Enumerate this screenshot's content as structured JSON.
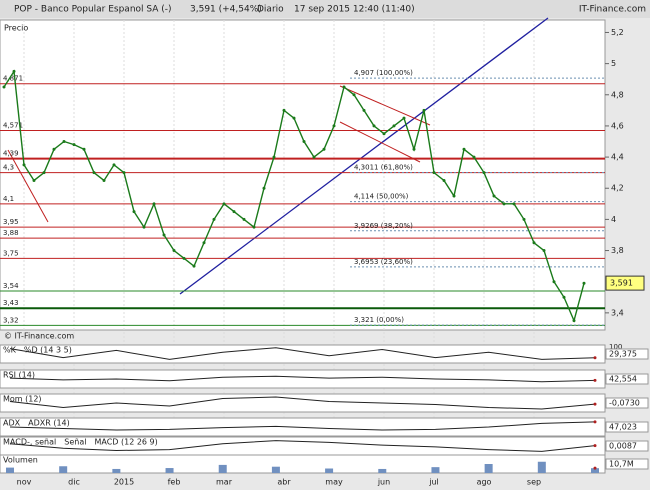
{
  "header": {
    "symbol": "POP - Banco Popular Espanol SA (-)",
    "price": "3,591 (+4,54%)",
    "period": "Diario",
    "datetime": "17 sep 2015 12:40 (11:40)",
    "brand": "IT-Finance.com"
  },
  "chart_data": {
    "type": "line",
    "price_label": "Precio",
    "copyright": "© IT-Finance.com",
    "color": "#1a7a1a",
    "categories": [
      null,
      null,
      "nov",
      null,
      null,
      null,
      null,
      "dic",
      null,
      null,
      null,
      null,
      "2015",
      null,
      null,
      null,
      null,
      "feb",
      null,
      null,
      null,
      null,
      "mar",
      null,
      null,
      null,
      null,
      null,
      "abr",
      null,
      null,
      null,
      null,
      "may",
      null,
      null,
      null,
      null,
      "jun",
      null,
      null,
      null,
      null,
      "jul",
      null,
      null,
      null,
      null,
      "ago",
      null,
      null,
      null,
      null,
      "sep",
      null,
      null,
      null,
      null,
      null
    ],
    "values": [
      4.85,
      4.95,
      4.35,
      4.25,
      4.3,
      4.45,
      4.5,
      4.48,
      4.45,
      4.3,
      4.25,
      4.35,
      4.3,
      4.05,
      3.95,
      4.1,
      3.9,
      3.8,
      3.75,
      3.7,
      3.85,
      4.0,
      4.1,
      4.05,
      4.0,
      3.95,
      4.2,
      4.4,
      4.7,
      4.65,
      4.5,
      4.4,
      4.45,
      4.6,
      4.85,
      4.8,
      4.7,
      4.6,
      4.55,
      4.6,
      4.65,
      4.45,
      4.7,
      4.3,
      4.25,
      4.15,
      4.45,
      4.4,
      4.3,
      4.15,
      4.1,
      4.1,
      4.0,
      3.85,
      3.8,
      3.6,
      3.5,
      3.35,
      3.59
    ],
    "ylim": [
      3.29,
      5.28
    ],
    "yticks": [
      {
        "value": 5.2,
        "label": "5,2"
      },
      5,
      {
        "value": 4.8,
        "label": "4,8"
      },
      {
        "value": 4.6,
        "label": "4,6"
      },
      {
        "value": 4.4,
        "label": "4,4"
      },
      {
        "value": 4.2,
        "label": "4,2"
      },
      4,
      {
        "value": 3.8,
        "label": "3,8"
      },
      {
        "value": 3.4,
        "label": "3,4"
      }
    ],
    "current": {
      "value": 3.591,
      "label": "3,591"
    },
    "levels": [
      {
        "value": 4.871,
        "label": "4,871",
        "color": "#c02020"
      },
      {
        "value": 4.571,
        "label": "4,571",
        "color": "#c02020"
      },
      {
        "value": 4.39,
        "label": "4,39",
        "color": "#c02020"
      },
      {
        "value": 4.3,
        "label": "4,3",
        "color": "#c02020"
      },
      {
        "value": 4.1,
        "label": "4,1",
        "color": "#c02020"
      },
      {
        "value": 3.95,
        "label": "3,95",
        "color": "#c02020"
      },
      {
        "value": 3.88,
        "label": "3,88",
        "color": "#c02020"
      },
      {
        "value": 3.75,
        "label": "3,75",
        "color": "#c02020"
      },
      {
        "value": 3.54,
        "label": "3,54",
        "color": "#2a8a2a"
      },
      {
        "value": 3.43,
        "label": "3,43",
        "color": "#0a5a0a"
      },
      {
        "value": 3.32,
        "label": "3,32",
        "color": "#2a8a2a"
      }
    ],
    "fib": [
      {
        "value": 4.907,
        "label": "4,907 (100,00%)"
      },
      {
        "value": 4.3011,
        "label": "4,3011 (61,80%)"
      },
      {
        "value": 4.114,
        "label": "4,114 (50,00%)"
      },
      {
        "value": 3.9269,
        "label": "3,9269 (38,20%)"
      },
      {
        "value": 3.6953,
        "label": "3,6953 (23,60%)"
      },
      {
        "value": 3.321,
        "label": "3,321 (0,00%)"
      }
    ],
    "panels": [
      {
        "labels": [
          "%K",
          "%D (14 3 5)"
        ],
        "top_label": "100",
        "ylim": [
          0,
          100
        ],
        "values": [
          80,
          30,
          70,
          20,
          60,
          85,
          40,
          75,
          30,
          60,
          20,
          29.375
        ],
        "last": {
          "value": 29.375,
          "label": "29,375"
        }
      },
      {
        "labels": [
          "RSI (14)"
        ],
        "ylim": [
          0,
          100
        ],
        "values": [
          55,
          45,
          50,
          40,
          60,
          65,
          55,
          60,
          50,
          45,
          35,
          42.554
        ],
        "last": {
          "value": 42.554,
          "label": "42,554"
        }
      },
      {
        "labels": [
          "Mom (12)"
        ],
        "ylim": [
          -0.6,
          0.6
        ],
        "values": [
          0.1,
          -0.3,
          0.0,
          -0.2,
          0.3,
          0.4,
          0.1,
          0.0,
          -0.1,
          -0.3,
          -0.4,
          -0.073
        ],
        "last": {
          "value": -0.073,
          "label": "-0,0730"
        }
      },
      {
        "labels": [
          "ADX",
          "ADXR (14)"
        ],
        "ylim": [
          0,
          60
        ],
        "values": [
          30,
          25,
          20,
          22,
          28,
          32,
          25,
          20,
          22,
          30,
          42,
          47.023
        ],
        "last": {
          "value": 47.023,
          "label": "47,023"
        }
      },
      {
        "labels": [
          "MACD-, señal",
          "Señal",
          "MACD (12 26 9)"
        ],
        "ylim": [
          -0.2,
          0.2
        ],
        "values": [
          0.05,
          -0.05,
          -0.1,
          -0.08,
          0.05,
          0.12,
          0.08,
          0.02,
          -0.02,
          -0.08,
          -0.12,
          0.0087
        ],
        "last": {
          "value": 0.0087,
          "label": "0,0087"
        }
      },
      {
        "labels": [
          "Volumen"
        ],
        "ylim": [
          0,
          40000000
        ],
        "values": [
          12000000,
          15000000,
          9000000,
          11000000,
          18000000,
          14000000,
          10000000,
          9000000,
          13000000,
          20000000,
          25000000,
          10700000
        ],
        "last": {
          "value": 10700000,
          "label": "10,7M"
        }
      }
    ]
  }
}
